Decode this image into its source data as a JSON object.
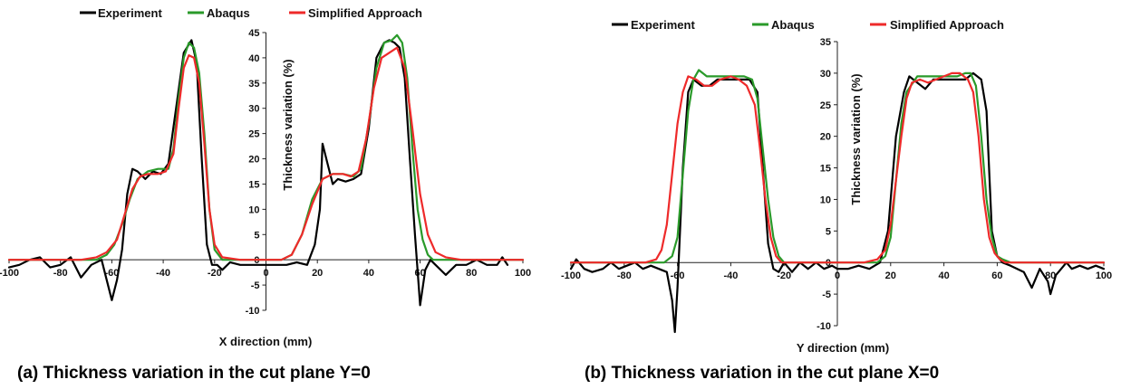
{
  "chart_data": [
    {
      "type": "line",
      "caption": "(a) Thickness variation in the cut plane Y=0",
      "xlabel": "X direction (mm)",
      "ylabel": "Thickness variation (%)",
      "xlim": [
        -100,
        100
      ],
      "ylim": [
        -10,
        45
      ],
      "xticks": [
        "-100",
        "-80",
        "-60",
        "-40",
        "-20",
        "0",
        "20",
        "40",
        "60",
        "80",
        "100"
      ],
      "yticks": [
        "-10",
        "-5",
        "0",
        "5",
        "10",
        "15",
        "20",
        "25",
        "30",
        "35",
        "40",
        "45"
      ],
      "legend_position": "top",
      "grid": false,
      "series": [
        {
          "name": "Experiment",
          "color": "#000000",
          "x": [
            -100,
            -96,
            -92,
            -88,
            -84,
            -80,
            -76,
            -72,
            -68,
            -64,
            -60,
            -58,
            -56,
            -54,
            -52,
            -50,
            -47,
            -44,
            -41,
            -38,
            -35,
            -32,
            -29,
            -27,
            -25,
            -23,
            -21,
            -19,
            -17,
            -14,
            -10,
            -6,
            -2,
            0,
            4,
            8,
            12,
            16,
            19,
            21,
            22,
            24,
            26,
            28,
            31,
            34,
            37,
            40,
            43,
            46,
            48,
            50,
            52,
            54,
            56,
            58,
            60,
            62,
            64,
            66,
            70,
            74,
            78,
            82,
            86,
            90,
            92,
            94
          ],
          "y": [
            -1.5,
            -1,
            0,
            0.5,
            -1.5,
            -1,
            0.5,
            -3.5,
            -1,
            0,
            -8,
            -4,
            2,
            13,
            18,
            17.5,
            16,
            17.5,
            17,
            19,
            30,
            41,
            43.5,
            39,
            20,
            3,
            -1,
            -1,
            -2,
            -0.5,
            -1,
            -1,
            -1,
            -1,
            -1,
            -1,
            -0.5,
            -1,
            3,
            10,
            23,
            19,
            15,
            16,
            15.5,
            16,
            17,
            26,
            40,
            43,
            43.5,
            43,
            42,
            36,
            20,
            5,
            -9,
            -2,
            0,
            -1,
            -3,
            -1,
            -1,
            0,
            -1,
            -1,
            0.5,
            -1
          ]
        },
        {
          "name": "Abaqus",
          "color": "#2a9a2a",
          "x": [
            -100,
            -80,
            -72,
            -66,
            -62,
            -59,
            -56,
            -53,
            -50,
            -46,
            -42,
            -38,
            -36,
            -34,
            -32,
            -30,
            -28,
            -26,
            -24,
            -22,
            -20,
            -17,
            -10,
            0,
            6,
            10,
            14,
            18,
            22,
            26,
            30,
            34,
            37,
            40,
            43,
            46,
            49,
            51,
            53,
            55,
            57,
            59,
            61,
            63,
            65,
            68,
            74,
            80,
            100
          ],
          "y": [
            0,
            0,
            0,
            0,
            1,
            3,
            7,
            12,
            16,
            17.5,
            18,
            18,
            22,
            32,
            40,
            43,
            42,
            37,
            25,
            10,
            2,
            0,
            0,
            0,
            0,
            1,
            5,
            12,
            16,
            17,
            17,
            16.5,
            18,
            27,
            38,
            43,
            43.5,
            44.5,
            43,
            36,
            22,
            10,
            4,
            1,
            0,
            0,
            0,
            0,
            0
          ]
        },
        {
          "name": "Simplified Approach",
          "color": "#ee2a2a",
          "x": [
            -100,
            -80,
            -72,
            -66,
            -62,
            -58,
            -55,
            -52,
            -49,
            -46,
            -42,
            -39,
            -36,
            -34,
            -32,
            -30,
            -28,
            -26,
            -24,
            -22,
            -20,
            -17,
            -10,
            0,
            6,
            10,
            14,
            18,
            22,
            26,
            30,
            33,
            36,
            39,
            42,
            45,
            48,
            51,
            54,
            57,
            60,
            63,
            66,
            70,
            76,
            80,
            100
          ],
          "y": [
            0,
            0,
            0,
            0.5,
            1.5,
            4,
            9,
            14,
            16.5,
            17,
            17,
            17.5,
            21,
            30,
            38,
            40.5,
            40,
            35,
            23,
            10,
            3,
            0.5,
            0,
            0,
            0,
            1,
            5,
            11,
            16,
            17,
            17,
            16.5,
            17.5,
            24,
            34,
            40,
            41,
            42,
            38,
            26,
            13,
            5,
            1.5,
            0.5,
            0,
            0,
            0
          ]
        }
      ]
    },
    {
      "type": "line",
      "caption": "(b) Thickness variation in the cut plane X=0",
      "xlabel": "Y direction (mm)",
      "ylabel": "Thickness variation (%)",
      "xlim": [
        -100,
        100
      ],
      "ylim": [
        -10,
        35
      ],
      "xticks": [
        "-100",
        "-80",
        "-60",
        "-40",
        "-20",
        "0",
        "20",
        "40",
        "60",
        "80",
        "100"
      ],
      "yticks": [
        "-10",
        "-5",
        "0",
        "5",
        "10",
        "15",
        "20",
        "25",
        "30",
        "35"
      ],
      "legend_position": "top",
      "grid": false,
      "series": [
        {
          "name": "Experiment",
          "color": "#000000",
          "x": [
            -100,
            -98,
            -95,
            -92,
            -88,
            -85,
            -82,
            -79,
            -76,
            -73,
            -70,
            -67,
            -64,
            -62,
            -61,
            -60,
            -58,
            -56,
            -54,
            -51,
            -48,
            -45,
            -42,
            -39,
            -36,
            -33,
            -30,
            -28,
            -26,
            -24,
            -22,
            -20,
            -17,
            -14,
            -11,
            -8,
            -5,
            -2,
            0,
            4,
            8,
            12,
            16,
            19,
            22,
            25,
            27,
            30,
            33,
            36,
            40,
            44,
            48,
            51,
            54,
            56,
            58,
            60,
            62,
            65,
            70,
            73,
            76,
            79,
            80,
            82,
            84,
            86,
            88,
            91,
            94,
            97,
            100
          ],
          "y": [
            -1,
            0.5,
            -1,
            -1.5,
            -1,
            0,
            -1,
            -0.5,
            0,
            -1,
            -0.5,
            -1,
            -1.5,
            -6,
            -11,
            -4,
            15,
            27,
            29,
            28,
            28,
            29,
            29,
            29,
            29,
            29,
            27,
            15,
            3,
            -1,
            -1.5,
            0,
            -1.5,
            0,
            -1,
            0,
            -1,
            -0.5,
            -1,
            -1,
            -0.5,
            -1,
            0,
            5,
            20,
            27,
            29.5,
            28.5,
            27.5,
            29,
            29,
            29,
            29,
            30,
            29,
            24,
            5,
            1,
            0,
            -0.5,
            -1.5,
            -4,
            -1,
            -3,
            -5,
            -2,
            -1,
            0,
            -1,
            -0.5,
            -1,
            -0.5,
            -1
          ]
        },
        {
          "name": "Abaqus",
          "color": "#2a9a2a",
          "x": [
            -100,
            -80,
            -70,
            -65,
            -62,
            -60,
            -58,
            -56,
            -54,
            -52,
            -49,
            -45,
            -40,
            -35,
            -32,
            -30,
            -28,
            -26,
            -24,
            -22,
            -20,
            -17,
            -10,
            0,
            10,
            15,
            18,
            20,
            22,
            24,
            26,
            30,
            35,
            40,
            45,
            48,
            50,
            52,
            54,
            56,
            58,
            60,
            62,
            65,
            70,
            80,
            100
          ],
          "y": [
            0,
            0,
            0,
            0,
            1,
            4,
            14,
            24,
            29,
            30.5,
            29.5,
            29.5,
            29.5,
            29.5,
            29,
            26,
            18,
            10,
            4,
            1,
            0,
            0,
            0,
            0,
            0,
            0,
            1,
            4,
            13,
            22,
            27,
            29.5,
            29.5,
            29.5,
            29.5,
            30,
            30,
            28,
            20,
            10,
            4,
            1,
            0.5,
            0,
            0,
            0,
            0
          ]
        },
        {
          "name": "Simplified Approach",
          "color": "#ee2a2a",
          "x": [
            -100,
            -80,
            -72,
            -68,
            -66,
            -64,
            -62,
            -60,
            -58,
            -56,
            -53,
            -50,
            -47,
            -44,
            -40,
            -37,
            -34,
            -31,
            -29,
            -27,
            -25,
            -23,
            -21,
            -19,
            -16,
            -10,
            0,
            10,
            15,
            18,
            20,
            22,
            24,
            26,
            28,
            31,
            34,
            37,
            40,
            43,
            46,
            49,
            51,
            53,
            55,
            57,
            59,
            61,
            63,
            66,
            70,
            80,
            100
          ],
          "y": [
            0,
            0,
            0,
            0.5,
            2,
            6,
            14,
            22,
            27,
            29.5,
            29,
            28,
            28,
            29,
            29.5,
            29,
            28,
            25,
            18,
            10,
            4,
            1,
            0,
            0,
            0,
            0,
            0,
            0,
            0.5,
            2,
            6,
            13,
            20,
            26,
            28.5,
            29,
            28.5,
            29,
            29.5,
            30,
            30,
            29,
            27,
            20,
            10,
            4,
            1.5,
            0.5,
            0,
            0,
            0,
            0,
            0
          ]
        }
      ]
    }
  ]
}
